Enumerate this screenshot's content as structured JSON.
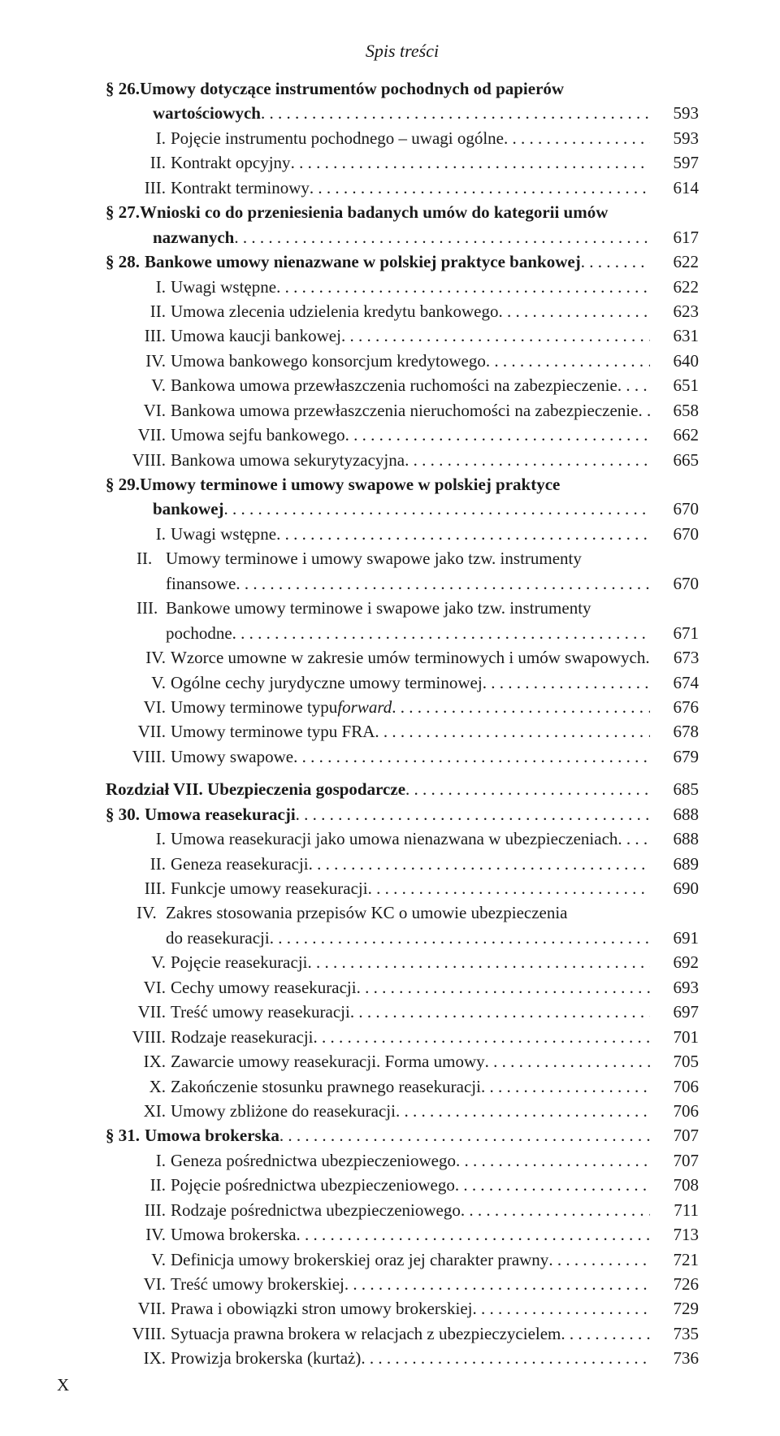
{
  "header": "Spis treści",
  "pageNumber": "X",
  "text_color": "#1a1a1a",
  "background_color": "#ffffff",
  "font_family": "Times New Roman",
  "base_font_size_pt": 16,
  "entries": [
    {
      "indent": 0,
      "marker": "§ 26.",
      "markerBold": true,
      "label": "Umowy dotyczące instrumentów pochodnych od papierów",
      "labelBold": true,
      "cont": true
    },
    {
      "indent": 58,
      "marker": "",
      "label": "wartościowych",
      "labelBold": true,
      "page": "593"
    },
    {
      "indent": 38,
      "marker": "I.",
      "markerW": 36,
      "label": "Pojęcie instrumentu pochodnego – uwagi ogólne",
      "page": "593"
    },
    {
      "indent": 38,
      "marker": "II.",
      "markerW": 36,
      "label": "Kontrakt opcyjny",
      "page": "597"
    },
    {
      "indent": 38,
      "marker": "III.",
      "markerW": 36,
      "label": "Kontrakt terminowy",
      "page": "614"
    },
    {
      "indent": 0,
      "marker": "§ 27.",
      "markerBold": true,
      "label": "Wnioski co do przeniesienia badanych umów do kategorii umów",
      "labelBold": true,
      "cont": true
    },
    {
      "indent": 58,
      "marker": "",
      "label": "nazwanych",
      "labelBold": true,
      "page": "617"
    },
    {
      "indent": 0,
      "marker": "§ 28.",
      "markerBold": true,
      "label": "Bankowe umowy nienazwane w polskiej praktyce bankowej",
      "labelBold": true,
      "page": "622"
    },
    {
      "indent": 38,
      "marker": "I.",
      "markerW": 36,
      "label": "Uwagi wstępne",
      "page": "622"
    },
    {
      "indent": 38,
      "marker": "II.",
      "markerW": 36,
      "label": "Umowa zlecenia udzielenia kredytu bankowego",
      "page": "623"
    },
    {
      "indent": 38,
      "marker": "III.",
      "markerW": 36,
      "label": "Umowa kaucji bankowej",
      "page": "631"
    },
    {
      "indent": 38,
      "marker": "IV.",
      "markerW": 36,
      "label": "Umowa bankowego konsorcjum kredytowego",
      "page": "640"
    },
    {
      "indent": 38,
      "marker": "V.",
      "markerW": 36,
      "label": "Bankowa umowa przewłaszczenia ruchomości na zabezpieczenie",
      "page": "651"
    },
    {
      "indent": 38,
      "marker": "VI.",
      "markerW": 36,
      "label": "Bankowa umowa przewłaszczenia nieruchomości na zabezpieczenie",
      "page": "658"
    },
    {
      "indent": 28,
      "marker": "VII.",
      "markerW": 46,
      "label": "Umowa sejfu bankowego",
      "page": "662"
    },
    {
      "indent": 20,
      "marker": "VIII.",
      "markerW": 54,
      "label": "Bankowa umowa sekurytyzacyjna",
      "page": "665"
    },
    {
      "indent": 0,
      "marker": "§ 29.",
      "markerBold": true,
      "label": "Umowy terminowe i umowy swapowe w polskiej praktyce",
      "labelBold": true,
      "cont": true
    },
    {
      "indent": 58,
      "marker": "",
      "label": "bankowej",
      "labelBold": true,
      "page": "670"
    },
    {
      "indent": 38,
      "marker": "I.",
      "markerW": 36,
      "label": "Uwagi wstępne",
      "page": "670"
    },
    {
      "indent": 38,
      "marker": "II.",
      "markerW": 36,
      "label": "Umowy terminowe i umowy swapowe jako tzw. instrumenty",
      "cont": true
    },
    {
      "indent": 74,
      "marker": "",
      "label": "finansowe",
      "page": "670"
    },
    {
      "indent": 38,
      "marker": "III.",
      "markerW": 36,
      "label": "Bankowe umowy terminowe i swapowe jako tzw. instrumenty",
      "cont": true
    },
    {
      "indent": 74,
      "marker": "",
      "label": "pochodne",
      "page": "671"
    },
    {
      "indent": 38,
      "marker": "IV.",
      "markerW": 36,
      "label": "Wzorce umowne w zakresie umów terminowych i umów swapowych",
      "page": "673"
    },
    {
      "indent": 38,
      "marker": "V.",
      "markerW": 36,
      "label": "Ogólne cechy jurydyczne umowy terminowej",
      "page": "674"
    },
    {
      "indent": 38,
      "marker": "VI.",
      "markerW": 36,
      "label": "Umowy terminowe typu ",
      "italicTail": "forward",
      "page": "676"
    },
    {
      "indent": 28,
      "marker": "VII.",
      "markerW": 46,
      "label": "Umowy terminowe typu FRA",
      "page": "678"
    },
    {
      "indent": 20,
      "marker": "VIII.",
      "markerW": 54,
      "label": "Umowy swapowe",
      "page": "679"
    },
    {
      "spacer": 10
    },
    {
      "indent": 0,
      "marker": "",
      "label": "Rozdział VII. Ubezpieczenia gospodarcze",
      "labelBold": true,
      "page": "685"
    },
    {
      "indent": 0,
      "marker": "§ 30.",
      "markerBold": true,
      "label": "Umowa reasekuracji",
      "labelBold": true,
      "page": "688"
    },
    {
      "indent": 38,
      "marker": "I.",
      "markerW": 36,
      "label": "Umowa reasekuracji jako umowa nienazwana w ubezpieczeniach",
      "page": "688"
    },
    {
      "indent": 38,
      "marker": "II.",
      "markerW": 36,
      "label": "Geneza reasekuracji",
      "page": "689"
    },
    {
      "indent": 38,
      "marker": "III.",
      "markerW": 36,
      "label": "Funkcje umowy reasekuracji",
      "page": "690"
    },
    {
      "indent": 38,
      "marker": "IV.",
      "markerW": 36,
      "label": "Zakres stosowania przepisów KC o umowie ubezpieczenia",
      "cont": true
    },
    {
      "indent": 74,
      "marker": "",
      "label": "do reasekuracji",
      "page": "691"
    },
    {
      "indent": 38,
      "marker": "V.",
      "markerW": 36,
      "label": "Pojęcie reasekuracji",
      "page": "692"
    },
    {
      "indent": 38,
      "marker": "VI.",
      "markerW": 36,
      "label": "Cechy umowy reasekuracji",
      "page": "693"
    },
    {
      "indent": 28,
      "marker": "VII.",
      "markerW": 46,
      "label": "Treść umowy reasekuracji",
      "page": "697"
    },
    {
      "indent": 20,
      "marker": "VIII.",
      "markerW": 54,
      "label": "Rodzaje reasekuracji",
      "page": "701"
    },
    {
      "indent": 38,
      "marker": "IX.",
      "markerW": 36,
      "label": "Zawarcie umowy reasekuracji. Forma umowy",
      "page": "705"
    },
    {
      "indent": 38,
      "marker": "X.",
      "markerW": 36,
      "label": "Zakończenie stosunku prawnego reasekuracji",
      "page": "706"
    },
    {
      "indent": 38,
      "marker": "XI.",
      "markerW": 36,
      "label": "Umowy zbliżone do reasekuracji",
      "page": "706"
    },
    {
      "indent": 0,
      "marker": "§ 31.",
      "markerBold": true,
      "label": "Umowa brokerska",
      "labelBold": true,
      "page": "707"
    },
    {
      "indent": 38,
      "marker": "I.",
      "markerW": 36,
      "label": "Geneza pośrednictwa ubezpieczeniowego",
      "page": "707"
    },
    {
      "indent": 38,
      "marker": "II.",
      "markerW": 36,
      "label": "Pojęcie pośrednictwa ubezpieczeniowego",
      "page": "708"
    },
    {
      "indent": 38,
      "marker": "III.",
      "markerW": 36,
      "label": "Rodzaje pośrednictwa ubezpieczeniowego",
      "page": "711"
    },
    {
      "indent": 38,
      "marker": "IV.",
      "markerW": 36,
      "label": "Umowa brokerska",
      "page": "713"
    },
    {
      "indent": 38,
      "marker": "V.",
      "markerW": 36,
      "label": "Definicja umowy brokerskiej oraz jej charakter prawny",
      "page": "721"
    },
    {
      "indent": 38,
      "marker": "VI.",
      "markerW": 36,
      "label": "Treść umowy brokerskiej",
      "page": "726"
    },
    {
      "indent": 28,
      "marker": "VII.",
      "markerW": 46,
      "label": "Prawa i obowiązki stron umowy brokerskiej",
      "page": "729"
    },
    {
      "indent": 20,
      "marker": "VIII.",
      "markerW": 54,
      "label": "Sytuacja prawna brokera w relacjach z ubezpieczycielem",
      "page": "735"
    },
    {
      "indent": 38,
      "marker": "IX.",
      "markerW": 36,
      "label": "Prowizja brokerska (kurtaż)",
      "page": "736"
    }
  ]
}
